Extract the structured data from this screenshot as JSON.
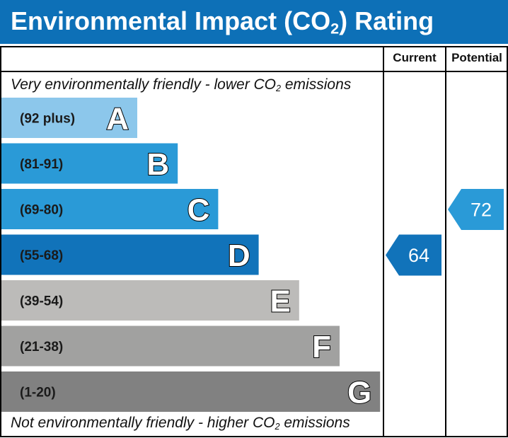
{
  "header": {
    "title_prefix": "Environmental Impact (CO",
    "title_sub": "2",
    "title_suffix": ") Rating"
  },
  "columns": {
    "current": "Current",
    "potential": "Potential"
  },
  "captions": {
    "top_prefix": "Very environmentally friendly - lower CO",
    "top_sub": "2",
    "top_suffix": " emissions",
    "bottom_prefix": "Not environmentally friendly - higher CO",
    "bottom_sub": "2",
    "bottom_suffix": " emissions"
  },
  "chart_data": {
    "type": "bar",
    "bands": [
      {
        "letter": "A",
        "range": "(92 plus)",
        "color": "#8cc7eb"
      },
      {
        "letter": "B",
        "range": "(81-91)",
        "color": "#2a9ad7"
      },
      {
        "letter": "C",
        "range": "(69-80)",
        "color": "#2a9ad7"
      },
      {
        "letter": "D",
        "range": "(55-68)",
        "color": "#1173ba"
      },
      {
        "letter": "E",
        "range": "(39-54)",
        "color": "#bcbbb9"
      },
      {
        "letter": "F",
        "range": "(21-38)",
        "color": "#a1a1a0"
      },
      {
        "letter": "G",
        "range": "(1-20)",
        "color": "#818181"
      }
    ],
    "current": {
      "value": 64,
      "band": "D",
      "color": "#1173ba"
    },
    "potential": {
      "value": 72,
      "band": "C",
      "color": "#2a9ad7"
    }
  }
}
